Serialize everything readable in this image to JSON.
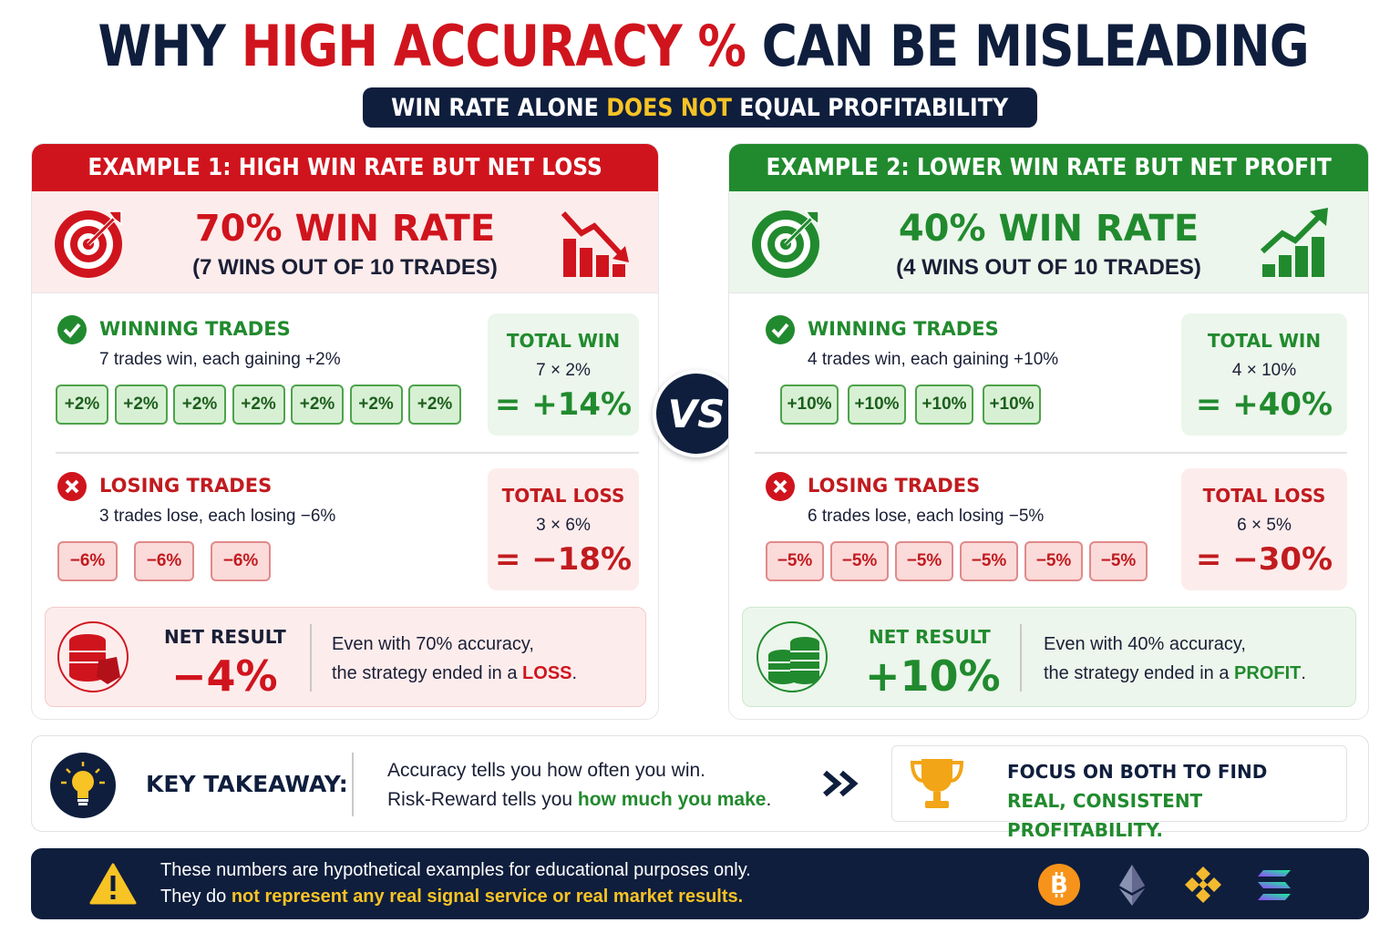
{
  "header": {
    "title_pre": "WHY ",
    "title_highlight": "HIGH ACCURACY %",
    "title_post": " CAN BE MISLEADING",
    "subtitle_pre": "WIN RATE ALONE ",
    "subtitle_highlight": "DOES NOT",
    "subtitle_post": " EQUAL PROFITABILITY"
  },
  "example1": {
    "heading": "EXAMPLE 1: HIGH WIN RATE BUT NET LOSS",
    "win_rate": "70% WIN RATE",
    "win_rate_detail": "(7 WINS OUT OF 10 TRADES)",
    "winning": {
      "label": "WINNING TRADES",
      "desc": "7 trades win, each gaining +2%",
      "chips": [
        "+2%",
        "+2%",
        "+2%",
        "+2%",
        "+2%",
        "+2%",
        "+2%"
      ],
      "total_label": "TOTAL WIN",
      "total_formula": "7 × 2%",
      "total_value": "= +14%"
    },
    "losing": {
      "label": "LOSING TRADES",
      "desc": "3 trades lose, each losing −6%",
      "chips": [
        "−6%",
        "−6%",
        "−6%"
      ],
      "total_label": "TOTAL LOSS",
      "total_formula": "3 × 6%",
      "total_value": "= −18%"
    },
    "net": {
      "label": "NET RESULT",
      "value": "−4%",
      "text_line1": "Even with 70% accuracy,",
      "text_line2_pre": "the strategy ended in a ",
      "text_line2_highlight": "LOSS",
      "text_line2_post": "."
    }
  },
  "example2": {
    "heading": "EXAMPLE 2: LOWER WIN RATE BUT NET PROFIT",
    "win_rate": "40% WIN RATE",
    "win_rate_detail": "(4 WINS OUT OF 10 TRADES)",
    "winning": {
      "label": "WINNING TRADES",
      "desc": "4 trades win, each gaining +10%",
      "chips": [
        "+10%",
        "+10%",
        "+10%",
        "+10%"
      ],
      "total_label": "TOTAL WIN",
      "total_formula": "4 × 10%",
      "total_value": "= +40%"
    },
    "losing": {
      "label": "LOSING TRADES",
      "desc": "6 trades lose, each losing −5%",
      "chips": [
        "−5%",
        "−5%",
        "−5%",
        "−5%",
        "−5%",
        "−5%"
      ],
      "total_label": "TOTAL LOSS",
      "total_formula": "6 × 5%",
      "total_value": "= −30%"
    },
    "net": {
      "label": "NET RESULT",
      "value": "+10%",
      "text_line1": "Even with 40% accuracy,",
      "text_line2_pre": "the strategy ended in a ",
      "text_line2_highlight": "PROFIT",
      "text_line2_post": "."
    }
  },
  "vs_label": "VS",
  "takeaway": {
    "label": "KEY TAKEAWAY:",
    "line1": "Accuracy tells you how often you win.",
    "line2_pre": "Risk-Reward tells you ",
    "line2_highlight": "how much you make",
    "line2_post": ".",
    "focus_line1": "FOCUS ON BOTH TO FIND",
    "focus_line2": "REAL, CONSISTENT PROFITABILITY."
  },
  "disclaimer": {
    "line1": "These numbers are hypothetical examples for educational purposes only.",
    "line2_pre": "They do ",
    "line2_highlight": "not represent any real signal service or real market results."
  },
  "icons": {
    "crypto": [
      "bitcoin-icon",
      "ethereum-icon",
      "binance-icon",
      "solana-icon"
    ]
  },
  "colors": {
    "red": "#d0141d",
    "green": "#218a2e",
    "navy": "#0f1e3d",
    "yellow": "#f7c325"
  }
}
